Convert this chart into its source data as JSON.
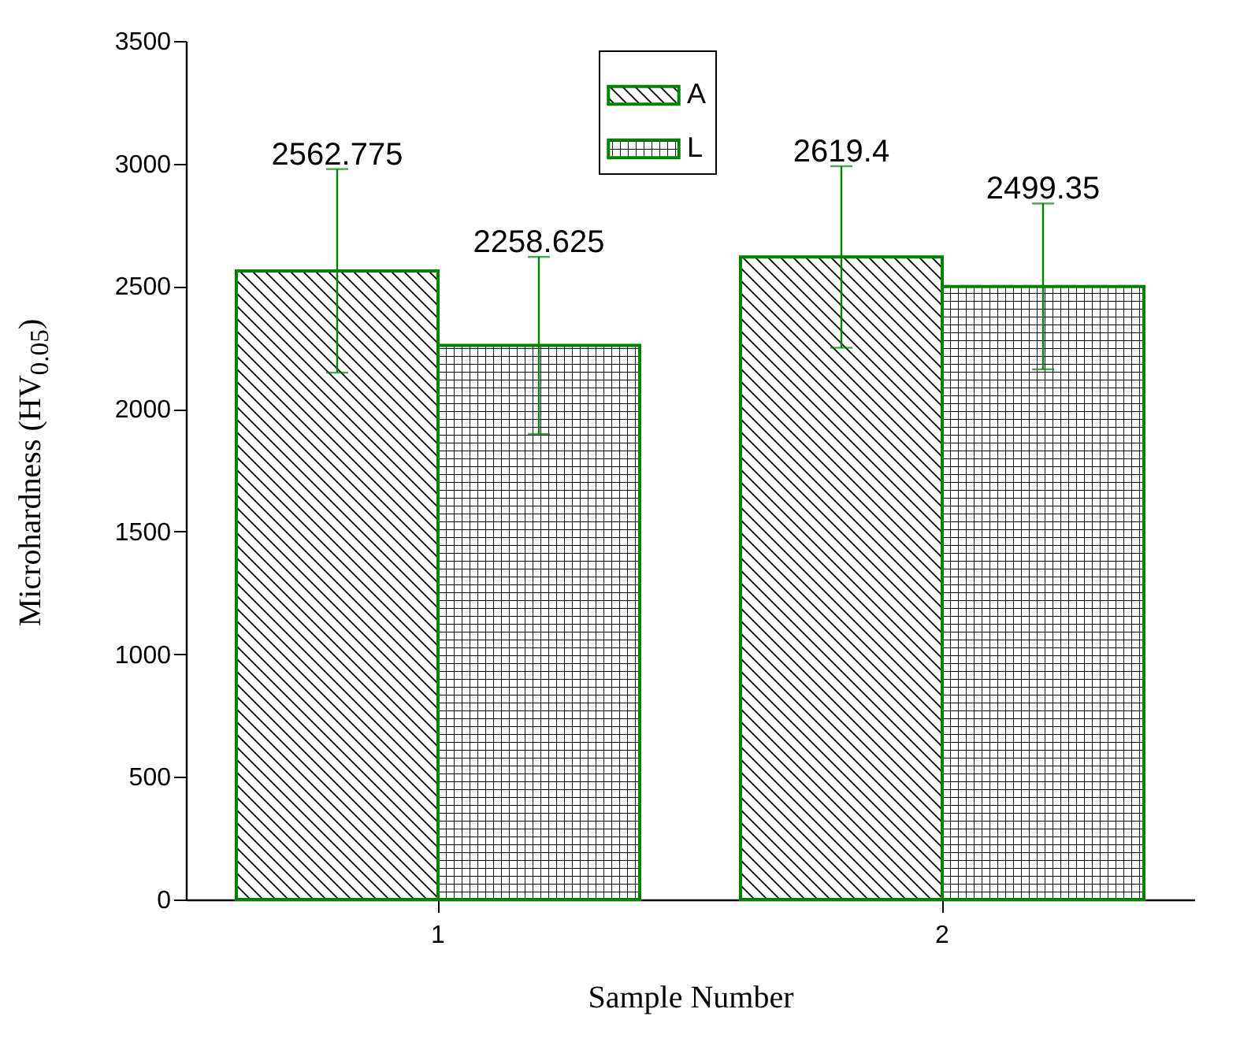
{
  "chart_data": {
    "type": "bar",
    "xlabel": "Sample Number",
    "ylabel": "Microhardness (HV$_{0.05}$)",
    "categories": [
      "1",
      "2"
    ],
    "series": [
      {
        "name": "A",
        "color": "#008000",
        "values": [
          2562.775,
          2619.4
        ],
        "errors": [
          415,
          370
        ],
        "value_labels": [
          "2562.775",
          "2619.4"
        ]
      },
      {
        "name": "L",
        "color": "#008000",
        "values": [
          2258.625,
          2499.35
        ],
        "errors": [
          361,
          338
        ],
        "value_labels": [
          "2258.625",
          "2499.35"
        ]
      }
    ],
    "ylim": [
      0,
      3500
    ],
    "yticks": [
      0,
      500,
      1000,
      1500,
      2000,
      2500,
      3000,
      3500
    ],
    "legend": "top",
    "grid": false
  }
}
